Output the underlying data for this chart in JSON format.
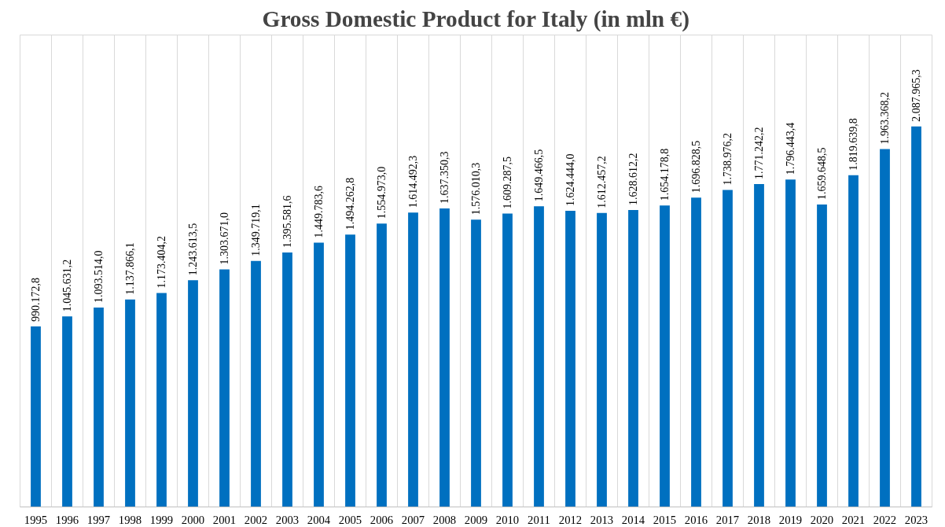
{
  "chart_data": {
    "type": "bar",
    "title": "Gross Domestic Product for Italy (in mln €)",
    "categories": [
      "1995",
      "1996",
      "1997",
      "1998",
      "1999",
      "2000",
      "2001",
      "2002",
      "2003",
      "2004",
      "2005",
      "2006",
      "2007",
      "2008",
      "2009",
      "2010",
      "2011",
      "2012",
      "2013",
      "2014",
      "2015",
      "2016",
      "2017",
      "2018",
      "2019",
      "2020",
      "2021",
      "2022",
      "2023"
    ],
    "values": [
      990172.8,
      1045631.2,
      1093514.0,
      1137866.1,
      1173404.2,
      1243613.5,
      1303671.0,
      1349719.1,
      1395581.6,
      1449783.6,
      1494262.8,
      1554973.0,
      1614492.3,
      1637350.3,
      1576010.3,
      1609287.5,
      1649466.5,
      1624444.0,
      1612457.2,
      1628612.2,
      1654178.8,
      1696828.5,
      1738976.2,
      1771242.2,
      1796443.4,
      1659648.5,
      1819639.8,
      1963368.2,
      2087965.3
    ],
    "value_labels": [
      "990.172,8",
      "1.045.631,2",
      "1.093.514,0",
      "1.137.866,1",
      "1.173.404,2",
      "1.243.613,5",
      "1.303.671,0",
      "1.349.719,1",
      "1.395.581,6",
      "1.449.783,6",
      "1.494.262,8",
      "1.554.973,0",
      "1.614.492,3",
      "1.637.350,3",
      "1.576.010,3",
      "1.609.287,5",
      "1.649.466,5",
      "1.624.444,0",
      "1.612.457,2",
      "1.628.612,2",
      "1.654.178,8",
      "1.696.828,5",
      "1.738.976,2",
      "1.771.242,2",
      "1.796.443,4",
      "1.659.648,5",
      "1.819.639,8",
      "1.963.368,2",
      "2.087.965,3"
    ],
    "color": "#0070c0",
    "grid": "x",
    "tick_labels": "x"
  }
}
